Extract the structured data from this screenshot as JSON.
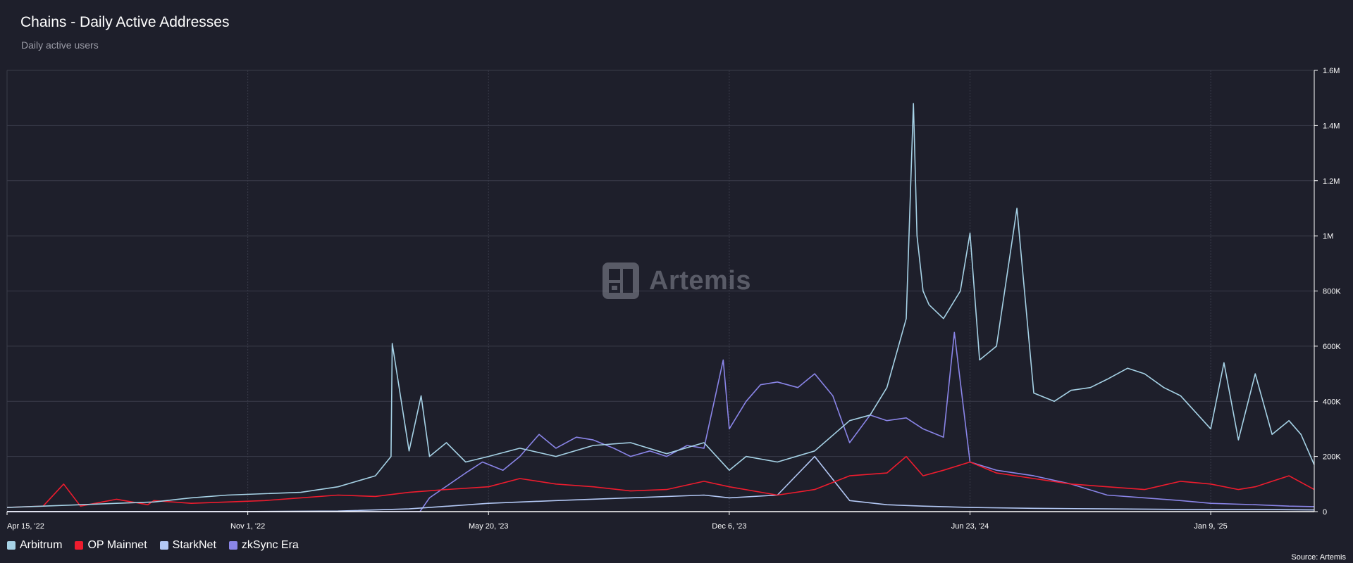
{
  "header": {
    "title": "Chains - Daily Active Addresses",
    "subtitle": "Daily active users"
  },
  "watermark": {
    "text": "Artemis"
  },
  "source": "Source: Artemis",
  "colors": {
    "background": "#1e1f2b",
    "grid": "#3a3c4a",
    "Arbitrum": "#a6d2e6",
    "OP Mainnet": "#ee1c2e",
    "StarkNet": "#b3c8f5",
    "zkSync Era": "#8a85e8"
  },
  "chart_data": {
    "type": "line",
    "title": "Chains - Daily Active Addresses",
    "subtitle": "Daily active users",
    "xlabel": "",
    "ylabel": "",
    "x_range": [
      "2022-04-15",
      "2025-04-05"
    ],
    "x_ticks": [
      {
        "date": "2022-04-15",
        "label": "Apr 15, '22"
      },
      {
        "date": "2022-11-01",
        "label": "Nov 1, '22"
      },
      {
        "date": "2023-05-20",
        "label": "May 20, '23"
      },
      {
        "date": "2023-12-06",
        "label": "Dec 6, '23"
      },
      {
        "date": "2024-06-23",
        "label": "Jun 23, '24"
      },
      {
        "date": "2025-01-09",
        "label": "Jan 9, '25"
      }
    ],
    "ylim": [
      0,
      1600000
    ],
    "y_ticks": [
      {
        "value": 0,
        "label": "0"
      },
      {
        "value": 200000,
        "label": "200K"
      },
      {
        "value": 400000,
        "label": "400K"
      },
      {
        "value": 600000,
        "label": "600K"
      },
      {
        "value": 800000,
        "label": "800K"
      },
      {
        "value": 1000000,
        "label": "1M"
      },
      {
        "value": 1200000,
        "label": "1.2M"
      },
      {
        "value": 1400000,
        "label": "1.4M"
      },
      {
        "value": 1600000,
        "label": "1.6M"
      }
    ],
    "grid": true,
    "legend_position": "bottom-left",
    "series": [
      {
        "name": "Arbitrum",
        "x": [
          "2022-04-15",
          "2022-05-15",
          "2022-06-15",
          "2022-07-15",
          "2022-08-15",
          "2022-09-15",
          "2022-10-15",
          "2022-11-15",
          "2022-12-15",
          "2023-01-15",
          "2023-02-15",
          "2023-02-28",
          "2023-03-01",
          "2023-03-15",
          "2023-03-25",
          "2023-04-01",
          "2023-04-15",
          "2023-05-01",
          "2023-05-20",
          "2023-06-15",
          "2023-07-15",
          "2023-08-15",
          "2023-09-15",
          "2023-10-15",
          "2023-11-15",
          "2023-12-06",
          "2023-12-20",
          "2024-01-15",
          "2024-02-15",
          "2024-03-15",
          "2024-04-01",
          "2024-04-15",
          "2024-05-01",
          "2024-05-07",
          "2024-05-10",
          "2024-05-15",
          "2024-05-20",
          "2024-06-01",
          "2024-06-15",
          "2024-06-23",
          "2024-07-01",
          "2024-07-15",
          "2024-08-01",
          "2024-08-15",
          "2024-09-01",
          "2024-09-15",
          "2024-10-01",
          "2024-10-15",
          "2024-11-01",
          "2024-11-15",
          "2024-12-01",
          "2024-12-15",
          "2025-01-09",
          "2025-01-20",
          "2025-02-01",
          "2025-02-15",
          "2025-03-01",
          "2025-03-15",
          "2025-03-25",
          "2025-04-05"
        ],
        "values": [
          15000,
          20000,
          25000,
          30000,
          35000,
          50000,
          60000,
          65000,
          70000,
          90000,
          130000,
          200000,
          610000,
          220000,
          420000,
          200000,
          250000,
          180000,
          200000,
          230000,
          200000,
          240000,
          250000,
          210000,
          250000,
          150000,
          200000,
          180000,
          220000,
          330000,
          350000,
          450000,
          700000,
          1480000,
          1000000,
          800000,
          750000,
          700000,
          800000,
          1010000,
          550000,
          600000,
          1100000,
          430000,
          400000,
          440000,
          450000,
          480000,
          520000,
          500000,
          450000,
          420000,
          300000,
          540000,
          260000,
          500000,
          280000,
          330000,
          280000,
          170000
        ]
      },
      {
        "name": "OP Mainnet",
        "x": [
          "2022-04-15",
          "2022-05-15",
          "2022-06-01",
          "2022-06-15",
          "2022-07-15",
          "2022-08-10",
          "2022-08-15",
          "2022-09-15",
          "2022-10-15",
          "2022-11-15",
          "2022-12-15",
          "2023-01-15",
          "2023-02-15",
          "2023-03-15",
          "2023-04-15",
          "2023-05-20",
          "2023-06-15",
          "2023-07-15",
          "2023-08-15",
          "2023-09-15",
          "2023-10-15",
          "2023-11-15",
          "2023-12-06",
          "2024-01-15",
          "2024-02-15",
          "2024-03-15",
          "2024-04-15",
          "2024-05-01",
          "2024-05-15",
          "2024-06-01",
          "2024-06-23",
          "2024-07-15",
          "2024-08-15",
          "2024-09-15",
          "2024-10-15",
          "2024-11-15",
          "2024-12-15",
          "2025-01-09",
          "2025-02-01",
          "2025-02-15",
          "2025-03-01",
          "2025-03-15",
          "2025-04-05"
        ],
        "values": [
          15000,
          20000,
          100000,
          20000,
          45000,
          25000,
          40000,
          30000,
          35000,
          40000,
          50000,
          60000,
          55000,
          70000,
          80000,
          90000,
          120000,
          100000,
          90000,
          75000,
          80000,
          110000,
          90000,
          60000,
          80000,
          130000,
          140000,
          200000,
          130000,
          150000,
          180000,
          140000,
          120000,
          100000,
          90000,
          80000,
          110000,
          100000,
          80000,
          90000,
          110000,
          130000,
          80000
        ]
      },
      {
        "name": "StarkNet",
        "x": [
          "2022-04-15",
          "2022-10-15",
          "2023-01-15",
          "2023-03-15",
          "2023-05-20",
          "2023-07-15",
          "2023-09-15",
          "2023-11-15",
          "2023-12-06",
          "2024-01-15",
          "2024-02-15",
          "2024-03-15",
          "2024-04-15",
          "2024-05-15",
          "2024-06-23",
          "2024-08-15",
          "2024-10-15",
          "2024-12-15",
          "2025-02-15",
          "2025-04-05"
        ],
        "values": [
          0,
          0,
          2000,
          10000,
          30000,
          40000,
          50000,
          60000,
          50000,
          60000,
          200000,
          40000,
          25000,
          20000,
          15000,
          12000,
          10000,
          8000,
          8000,
          6000
        ]
      },
      {
        "name": "zkSync Era",
        "x": [
          "2022-04-15",
          "2023-03-24",
          "2023-04-01",
          "2023-05-01",
          "2023-05-15",
          "2023-06-01",
          "2023-06-15",
          "2023-07-01",
          "2023-07-15",
          "2023-08-01",
          "2023-08-15",
          "2023-09-01",
          "2023-09-15",
          "2023-10-01",
          "2023-10-15",
          "2023-11-01",
          "2023-11-15",
          "2023-12-01",
          "2023-12-06",
          "2023-12-20",
          "2024-01-01",
          "2024-01-15",
          "2024-02-01",
          "2024-02-15",
          "2024-03-01",
          "2024-03-15",
          "2024-04-01",
          "2024-04-15",
          "2024-05-01",
          "2024-05-15",
          "2024-06-01",
          "2024-06-10",
          "2024-06-23",
          "2024-07-15",
          "2024-08-15",
          "2024-09-15",
          "2024-10-15",
          "2024-11-15",
          "2024-12-15",
          "2025-01-09",
          "2025-02-15",
          "2025-03-15",
          "2025-04-05"
        ],
        "values": [
          0,
          0,
          50000,
          140000,
          180000,
          150000,
          200000,
          280000,
          230000,
          270000,
          260000,
          230000,
          200000,
          220000,
          200000,
          240000,
          230000,
          550000,
          300000,
          400000,
          460000,
          470000,
          450000,
          500000,
          420000,
          250000,
          350000,
          330000,
          340000,
          300000,
          270000,
          650000,
          180000,
          150000,
          130000,
          100000,
          60000,
          50000,
          40000,
          30000,
          25000,
          20000,
          18000
        ]
      }
    ]
  }
}
